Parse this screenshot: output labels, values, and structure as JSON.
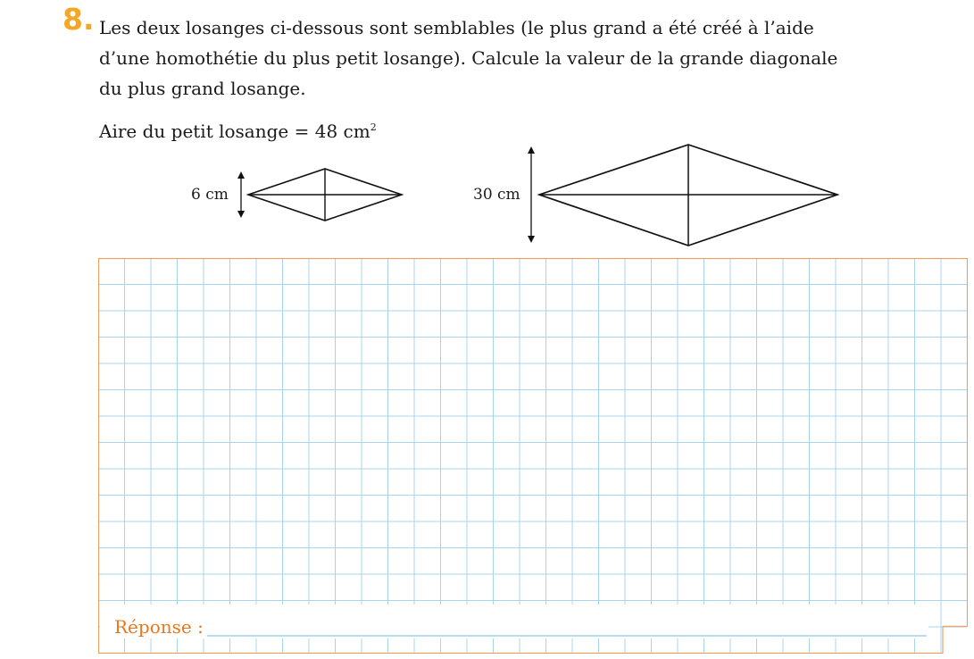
{
  "exercise": {
    "number": "8.",
    "question_line1": "Les deux losanges ci-dessous sont semblables (le plus grand a été créé à l’aide",
    "question_line2": "d’une homothétie du plus petit losange). Calcule la valeur de la grande diagonale",
    "question_line3": "du plus grand losange.",
    "area_text": "Aire du petit losange = 48 cm",
    "area_exponent": "2"
  },
  "figures": {
    "small_diagonal_label": "6 cm",
    "large_diagonal_label": "30 cm"
  },
  "answer": {
    "label": "Réponse :"
  },
  "colors": {
    "number": "#f5a623",
    "grid_line": "#a8d4ee",
    "frame": "#f0a060",
    "answer_label": "#e8771e",
    "answer_underline": "#8cc7e6"
  }
}
